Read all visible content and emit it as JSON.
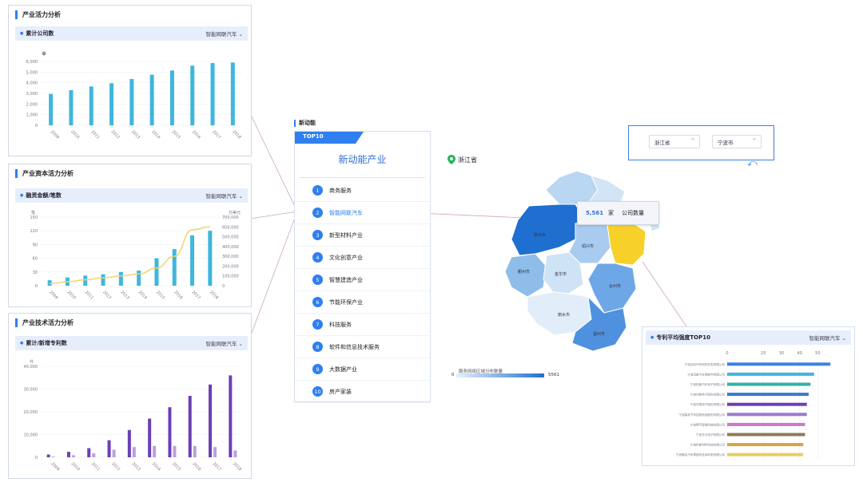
{
  "colors": {
    "accent": "#2f7ff0",
    "cyan_bar": "#3fb6de",
    "purple_bar": "#6b3fb5",
    "purple_light": "#b9a0dc",
    "yellow_line": "#f3d36c",
    "highlight_region": "#f7d12a"
  },
  "panel1": {
    "title": "产业活力分析",
    "sub_title": "累计公司数",
    "select": "智能网联汽车",
    "select_icon": "chevron-down-icon"
  },
  "panel2": {
    "title": "产业资本活力分析",
    "sub_title": "融资金额/笔数",
    "select": "智能网联汽车",
    "select_icon": "chevron-down-icon",
    "left_unit": "笔",
    "right_unit": "万美元"
  },
  "panel3": {
    "title": "产业技术活力分析",
    "sub_title": "累计/新增专利数",
    "select": "智能网联汽车",
    "select_icon": "chevron-down-icon",
    "left_unit": "件"
  },
  "chart_data": [
    {
      "type": "bar",
      "title": "累计公司数",
      "categories": [
        "2009",
        "2010",
        "2011",
        "2012",
        "2013",
        "2014",
        "2015",
        "2016",
        "2017",
        "2018"
      ],
      "values": [
        2950,
        3300,
        3650,
        3950,
        4350,
        4750,
        5150,
        5600,
        5850,
        5900
      ],
      "ylim": [
        0,
        6000
      ],
      "yticks": [
        "0",
        "1,000",
        "2,000",
        "3,000",
        "4,000",
        "5,000",
        "6,000"
      ]
    },
    {
      "type": "bar",
      "title": "融资金额/笔数",
      "categories": [
        "2009",
        "2010",
        "2011",
        "2012",
        "2013",
        "2014",
        "2015",
        "2016",
        "2017",
        "2018"
      ],
      "series": [
        {
          "values": [
            12,
            18,
            22,
            25,
            30,
            33,
            60,
            80,
            110,
            120
          ]
        },
        {
          "values": [
            20000,
            40000,
            60000,
            80000,
            100000,
            120000,
            180000,
            300000,
            570000,
            600000
          ]
        }
      ],
      "ylim": [
        0,
        150
      ],
      "y2lim": [
        0,
        700000
      ],
      "yticks": [
        "0",
        "30",
        "60",
        "90",
        "120",
        "150"
      ],
      "y2ticks": [
        "0",
        "100,000",
        "200,000",
        "300,000",
        "400,000",
        "500,000",
        "600,000",
        "700,000"
      ]
    },
    {
      "type": "bar",
      "title": "累计/新增专利数",
      "categories": [
        "2009",
        "2010",
        "2011",
        "2012",
        "2013",
        "2014",
        "2015",
        "2016",
        "2017",
        "2018"
      ],
      "series": [
        {
          "values": [
            1200,
            2400,
            4000,
            7500,
            12000,
            17000,
            22000,
            27000,
            32000,
            36000
          ]
        },
        {
          "values": [
            300,
            900,
            1700,
            3300,
            4500,
            5000,
            5000,
            5000,
            4500,
            3000
          ]
        }
      ],
      "ylim": [
        0,
        40000
      ],
      "yticks": [
        "0",
        "10,000",
        "20,000",
        "30,000",
        "40,000"
      ]
    },
    {
      "type": "bar",
      "title": "专利平均强度TOP10",
      "categories": [
        "宁波吉利汽车研究开发有限公司",
        "宁波远景汽车零部件有限公司",
        "宁波拓普汽车电子有限公司",
        "宁波均胜电子股份有限公司",
        "宁波华翔电子股份有限公司",
        "宁波高发汽车控制系统股份有限公司",
        "宁波舜宇智能科技有限公司",
        "宁波东方电子有限公司",
        "宁波科星材料科技有限公司",
        "宁波敏实汽车零部件技术研发有限公司"
      ],
      "values": [
        57,
        48,
        46,
        45,
        44,
        44,
        43,
        43,
        42,
        42
      ],
      "ylim": [
        0,
        60
      ],
      "yticks": [
        "0",
        "20",
        "30",
        "40",
        "50"
      ]
    }
  ],
  "center": {
    "section_label": "新动能",
    "tab_label": "TOP10",
    "title": "新动能产业",
    "items": [
      {
        "num": "1",
        "label": "商务服务"
      },
      {
        "num": "2",
        "label": "智能网联汽车"
      },
      {
        "num": "3",
        "label": "新型材料产业"
      },
      {
        "num": "4",
        "label": "文化创意产业"
      },
      {
        "num": "5",
        "label": "智慧建造产业"
      },
      {
        "num": "6",
        "label": "节能环保产业"
      },
      {
        "num": "7",
        "label": "科技服务"
      },
      {
        "num": "8",
        "label": "软件和信息技术服务"
      },
      {
        "num": "9",
        "label": "大数据产业"
      },
      {
        "num": "10",
        "label": "房产家装"
      }
    ],
    "active_index": 1
  },
  "map": {
    "province_icon": "map-pin-icon",
    "province": "浙江省",
    "filter_province": "浙江省",
    "filter_city": "宁波市",
    "back_icon": "back-arrow-icon",
    "tooltip_value": "5,561",
    "tooltip_unit": "家",
    "tooltip_label": "公司数量",
    "legend_title": "服务网络区域分布数量",
    "legend_min": "0",
    "legend_max": "5561",
    "region_labels": [
      "衢州市",
      "金华市",
      "丽水市",
      "温州市",
      "台州市",
      "绍兴市",
      "杭州市"
    ]
  },
  "patent": {
    "sub_title": "专利平均强度TOP10",
    "select": "智能网联汽车",
    "select_icon": "chevron-down-icon"
  }
}
